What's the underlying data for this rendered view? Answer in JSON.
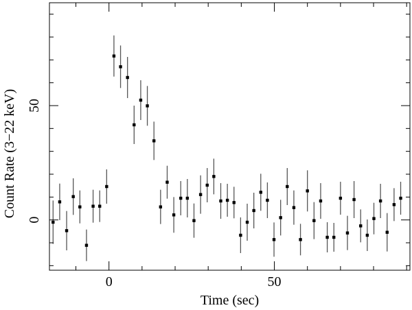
{
  "chart_data": {
    "type": "scatter",
    "title": "",
    "xlabel": "Time (sec)",
    "ylabel": "Count Rate (3−22 keV)",
    "xlim": [
      -18,
      91
    ],
    "ylim": [
      -22,
      95
    ],
    "xticks_major": [
      0,
      50
    ],
    "yticks_major": [
      0,
      50
    ],
    "xtick_labels": [
      "0",
      "50"
    ],
    "ytick_labels": [
      "0",
      "50"
    ],
    "xticks_minor_step": 10,
    "yticks_minor_step": 10,
    "grid": false,
    "legend": "none",
    "marker_color": "#000000",
    "errorbar_color": "#555555",
    "points": [
      {
        "x": -16.9,
        "y": -1.0,
        "err": 9.5
      },
      {
        "x": -14.9,
        "y": 7.9,
        "err": 8.0
      },
      {
        "x": -12.8,
        "y": -4.7,
        "err": 8.6
      },
      {
        "x": -10.8,
        "y": 10.2,
        "err": 8.0
      },
      {
        "x": -8.8,
        "y": 5.7,
        "err": 7.2
      },
      {
        "x": -6.8,
        "y": -11.1,
        "err": 6.9
      },
      {
        "x": -4.8,
        "y": 6.0,
        "err": 7.2
      },
      {
        "x": -2.8,
        "y": 6.0,
        "err": 6.9
      },
      {
        "x": -0.7,
        "y": 14.6,
        "err": 7.5
      },
      {
        "x": 1.5,
        "y": 71.7,
        "err": 9.0
      },
      {
        "x": 3.5,
        "y": 67.0,
        "err": 9.3
      },
      {
        "x": 5.6,
        "y": 62.3,
        "err": 9.0
      },
      {
        "x": 7.6,
        "y": 41.6,
        "err": 8.4
      },
      {
        "x": 9.6,
        "y": 52.4,
        "err": 8.7
      },
      {
        "x": 11.6,
        "y": 49.9,
        "err": 8.7
      },
      {
        "x": 13.6,
        "y": 34.6,
        "err": 8.4
      },
      {
        "x": 15.6,
        "y": 5.7,
        "err": 7.5
      },
      {
        "x": 17.6,
        "y": 16.5,
        "err": 7.2
      },
      {
        "x": 19.6,
        "y": 2.2,
        "err": 7.8
      },
      {
        "x": 21.7,
        "y": 9.5,
        "err": 7.5
      },
      {
        "x": 23.7,
        "y": 9.5,
        "err": 8.4
      },
      {
        "x": 25.7,
        "y": -0.3,
        "err": 7.5
      },
      {
        "x": 27.7,
        "y": 11.1,
        "err": 8.4
      },
      {
        "x": 29.7,
        "y": 15.2,
        "err": 7.5
      },
      {
        "x": 31.7,
        "y": 19.0,
        "err": 7.8
      },
      {
        "x": 33.8,
        "y": 8.3,
        "err": 7.8
      },
      {
        "x": 35.8,
        "y": 8.6,
        "err": 7.2
      },
      {
        "x": 37.8,
        "y": 7.6,
        "err": 6.9
      },
      {
        "x": 39.8,
        "y": -6.7,
        "err": 7.8
      },
      {
        "x": 41.8,
        "y": -1.0,
        "err": 8.1
      },
      {
        "x": 43.8,
        "y": 4.1,
        "err": 7.8
      },
      {
        "x": 45.9,
        "y": 12.1,
        "err": 8.1
      },
      {
        "x": 47.9,
        "y": 8.6,
        "err": 7.8
      },
      {
        "x": 49.9,
        "y": -8.6,
        "err": 7.5
      },
      {
        "x": 51.9,
        "y": 1.0,
        "err": 7.8
      },
      {
        "x": 53.9,
        "y": 14.6,
        "err": 8.1
      },
      {
        "x": 55.9,
        "y": 5.4,
        "err": 7.5
      },
      {
        "x": 57.9,
        "y": -8.6,
        "err": 6.9
      },
      {
        "x": 60.0,
        "y": 12.7,
        "err": 9.0
      },
      {
        "x": 62.0,
        "y": -0.3,
        "err": 8.1
      },
      {
        "x": 64.0,
        "y": 8.3,
        "err": 7.8
      },
      {
        "x": 66.0,
        "y": -7.6,
        "err": 6.6
      },
      {
        "x": 68.0,
        "y": -7.6,
        "err": 6.3
      },
      {
        "x": 70.0,
        "y": 9.5,
        "err": 7.2
      },
      {
        "x": 72.1,
        "y": -5.7,
        "err": 7.5
      },
      {
        "x": 74.1,
        "y": 8.9,
        "err": 8.1
      },
      {
        "x": 76.1,
        "y": -2.6,
        "err": 7.2
      },
      {
        "x": 78.1,
        "y": -6.7,
        "err": 6.9
      },
      {
        "x": 80.1,
        "y": 0.6,
        "err": 6.9
      },
      {
        "x": 82.1,
        "y": 8.3,
        "err": 7.5
      },
      {
        "x": 84.1,
        "y": -5.4,
        "err": 8.4
      },
      {
        "x": 86.2,
        "y": 6.7,
        "err": 7.2
      },
      {
        "x": 88.2,
        "y": 9.5,
        "err": 7.2
      }
    ]
  }
}
